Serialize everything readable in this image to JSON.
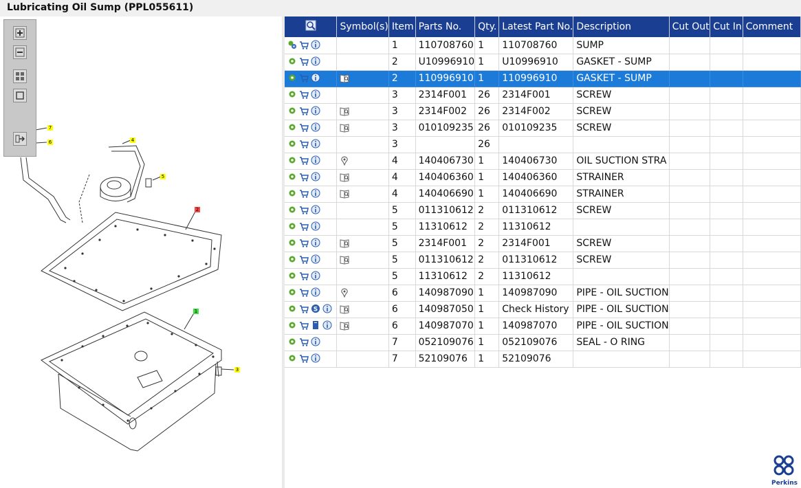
{
  "window": {
    "title": "Lubricating Oil Sump (PPL055611)"
  },
  "toolbar": {
    "buttons": [
      "zoom-in-icon",
      "zoom-out-icon",
      "fit-window-icon",
      "actual-size-icon",
      "export-icon"
    ]
  },
  "diagram": {
    "callouts": [
      {
        "label": "7",
        "color": "#ffff00"
      },
      {
        "label": "6",
        "color": "#ffff00"
      },
      {
        "label": "4",
        "color": "#ffff00"
      },
      {
        "label": "5",
        "color": "#ffff00"
      },
      {
        "label": "2",
        "color": "#ff4444"
      },
      {
        "label": "1",
        "color": "#44dd44"
      },
      {
        "label": "3",
        "color": "#ffff00"
      }
    ]
  },
  "grid": {
    "headers": [
      "",
      "Symbol(s)",
      "Item",
      "Parts No.",
      "Qty.",
      "Latest Part No.",
      "Description",
      "Cut Out",
      "Cut In",
      "Comment"
    ],
    "rows": [
      {
        "icons": [
          "gears-icon",
          "cart-icon",
          "info-icon"
        ],
        "symbol": "",
        "item": "1",
        "part": "110708760",
        "qty": "1",
        "latest": "110708760",
        "desc": "SUMP"
      },
      {
        "icons": [
          "gear-icon",
          "cart-icon",
          "info-icon"
        ],
        "symbol": "",
        "item": "2",
        "part": "U10996910",
        "qty": "1",
        "latest": "U10996910",
        "desc": "GASKET - SUMP"
      },
      {
        "icons": [
          "gear-icon",
          "cart-icon",
          "info-icon"
        ],
        "symbol": "book-icon",
        "item": "2",
        "part": "110996910",
        "qty": "1",
        "latest": "110996910",
        "desc": "GASKET - SUMP",
        "selected": true
      },
      {
        "icons": [
          "gear-icon",
          "cart-icon",
          "info-icon"
        ],
        "symbol": "",
        "item": "3",
        "part": "2314F001",
        "qty": "26",
        "latest": "2314F001",
        "desc": "SCREW"
      },
      {
        "icons": [
          "gear-icon",
          "cart-icon",
          "info-icon"
        ],
        "symbol": "book-icon",
        "item": "3",
        "part": "2314F002",
        "qty": "26",
        "latest": "2314F002",
        "desc": "SCREW"
      },
      {
        "icons": [
          "gear-icon",
          "cart-icon",
          "info-icon"
        ],
        "symbol": "book-icon",
        "item": "3",
        "part": "010109235",
        "qty": "26",
        "latest": "010109235",
        "desc": "SCREW"
      },
      {
        "icons": [
          "gear-icon",
          "cart-icon",
          "info-icon"
        ],
        "symbol": "",
        "item": "3",
        "part": "",
        "qty": "26",
        "latest": "",
        "desc": ""
      },
      {
        "icons": [
          "gear-icon",
          "cart-icon",
          "info-icon"
        ],
        "symbol": "pin-icon",
        "item": "4",
        "part": "140406730",
        "qty": "1",
        "latest": "140406730",
        "desc": "OIL SUCTION STRA"
      },
      {
        "icons": [
          "gear-icon",
          "cart-icon",
          "info-icon"
        ],
        "symbol": "book-icon",
        "item": "4",
        "part": "140406360",
        "qty": "1",
        "latest": "140406360",
        "desc": "STRAINER"
      },
      {
        "icons": [
          "gear-icon",
          "cart-icon",
          "info-icon"
        ],
        "symbol": "book-icon",
        "item": "4",
        "part": "140406690",
        "qty": "1",
        "latest": "140406690",
        "desc": "STRAINER"
      },
      {
        "icons": [
          "gear-icon",
          "cart-icon",
          "info-icon"
        ],
        "symbol": "",
        "item": "5",
        "part": "011310612",
        "qty": "2",
        "latest": "011310612",
        "desc": "SCREW"
      },
      {
        "icons": [
          "gear-icon",
          "cart-icon",
          "info-icon"
        ],
        "symbol": "",
        "item": "5",
        "part": "11310612",
        "qty": "2",
        "latest": "11310612",
        "desc": ""
      },
      {
        "icons": [
          "gear-icon",
          "cart-icon",
          "info-icon"
        ],
        "symbol": "book-icon",
        "item": "5",
        "part": "2314F001",
        "qty": "2",
        "latest": "2314F001",
        "desc": "SCREW"
      },
      {
        "icons": [
          "gear-icon",
          "cart-icon",
          "info-icon"
        ],
        "symbol": "book-icon",
        "item": "5",
        "part": "011310612",
        "qty": "2",
        "latest": "011310612",
        "desc": "SCREW"
      },
      {
        "icons": [
          "gear-icon",
          "cart-icon",
          "info-icon"
        ],
        "symbol": "",
        "item": "5",
        "part": "11310612",
        "qty": "2",
        "latest": "11310612",
        "desc": ""
      },
      {
        "icons": [
          "gear-icon",
          "cart-icon",
          "info-icon"
        ],
        "symbol": "pin-icon",
        "item": "6",
        "part": "140987090",
        "qty": "1",
        "latest": "140987090",
        "desc": "PIPE - OIL SUCTION"
      },
      {
        "icons": [
          "gear-icon",
          "cart-icon",
          "s-badge-icon",
          "info-icon"
        ],
        "symbol": "book-icon",
        "item": "6",
        "part": "140987050",
        "qty": "1",
        "latest": "Check History",
        "desc": "PIPE - OIL SUCTION"
      },
      {
        "icons": [
          "gear-icon",
          "cart-icon",
          "doc-icon",
          "info-icon"
        ],
        "symbol": "book-icon",
        "item": "6",
        "part": "140987070",
        "qty": "1",
        "latest": "140987070",
        "desc": "PIPE - OIL SUCTION"
      },
      {
        "icons": [
          "gear-icon",
          "cart-icon",
          "info-icon"
        ],
        "symbol": "",
        "item": "7",
        "part": "052109076",
        "qty": "1",
        "latest": "052109076",
        "desc": "SEAL - O RING"
      },
      {
        "icons": [
          "gear-icon",
          "cart-icon",
          "info-icon"
        ],
        "symbol": "",
        "item": "7",
        "part": "52109076",
        "qty": "1",
        "latest": "52109076",
        "desc": ""
      }
    ]
  },
  "brand": {
    "name": "Perkins",
    "color": "#1a3e91"
  }
}
